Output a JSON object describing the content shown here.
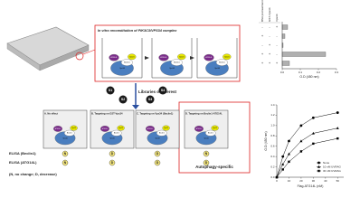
{
  "diagram": {
    "title": "In vitro reconstitution of PIK3C3/VPS34 complex",
    "proteins": [
      "ATG14L",
      "Vps15",
      "Beclin1",
      "Vps34"
    ],
    "libraries": "Libraries of interest",
    "compounds": [
      "S1",
      "S2",
      "S3",
      "S4"
    ],
    "panels": [
      {
        "title": "A. No effect",
        "elisa": [
          "N",
          "N"
        ]
      },
      {
        "title": "B. Targeting on GST-Vps34",
        "elisa": [
          "D",
          "D"
        ]
      },
      {
        "title": "C. Targeting on Vps34 (Beclin1)",
        "elisa": [
          "D",
          "D"
        ]
      },
      {
        "title": "D. Targeting on Beclin1-ATG14L",
        "elisa": [
          "N",
          "D"
        ]
      }
    ],
    "elisa_rows": [
      "ELISA (Beclin1)",
      "ELISA (ATG14L)"
    ],
    "note": "(N, no change; D, decrease)",
    "highlight": "Autophagy-specific"
  },
  "chart_data": [
    {
      "type": "bar",
      "orientation": "horizontal",
      "conditions": {
        "headers": [
          "BSA pretreatment",
          "GST-Vps34",
          "Vps34"
        ],
        "rows": [
          [
            "-",
            "-",
            "+"
          ],
          [
            "+",
            "-",
            "-"
          ],
          [
            "-",
            "+",
            "-"
          ],
          [
            "+",
            "+",
            "-"
          ],
          [
            "+",
            "+",
            "+"
          ]
        ]
      },
      "values": [
        0.03,
        0.015,
        0.005,
        0.24,
        0.04
      ],
      "color": "#b0b0b0",
      "xlim": [
        0,
        0.3
      ],
      "xticks": [
        {
          "value": 0,
          "label": "0.0"
        },
        0.1,
        0.2,
        0.3
      ],
      "xlabel": "O.D (450 nm)"
    },
    {
      "type": "line",
      "x": [
        0,
        5,
        10,
        20,
        30,
        50
      ],
      "series": [
        {
          "name": "None",
          "color": "#000000",
          "values": [
            0,
            0.4,
            0.7,
            1.0,
            1.15,
            1.25
          ]
        },
        {
          "name": "10 nM UVRAG",
          "color": "#000000",
          "values": [
            0,
            0.25,
            0.45,
            0.7,
            0.85,
            0.95
          ]
        },
        {
          "name": "30 nM UVRAG",
          "color": "#000000",
          "values": [
            0,
            0.15,
            0.3,
            0.5,
            0.65,
            0.75
          ]
        }
      ],
      "xlim": [
        0,
        55
      ],
      "xticks": [
        0,
        10,
        20,
        30,
        40,
        50
      ],
      "ylim": [
        0,
        1.4
      ],
      "yticks": [
        {
          "value": 0,
          "label": "0.0"
        },
        0.2,
        0.4,
        0.6,
        0.8,
        {
          "value": 1,
          "label": "1.0"
        },
        1.2,
        1.4
      ],
      "xlabel": "Flag-ATG14L (nM)",
      "ylabel": "O.D (450 nm)",
      "legend": "lower-right"
    }
  ]
}
